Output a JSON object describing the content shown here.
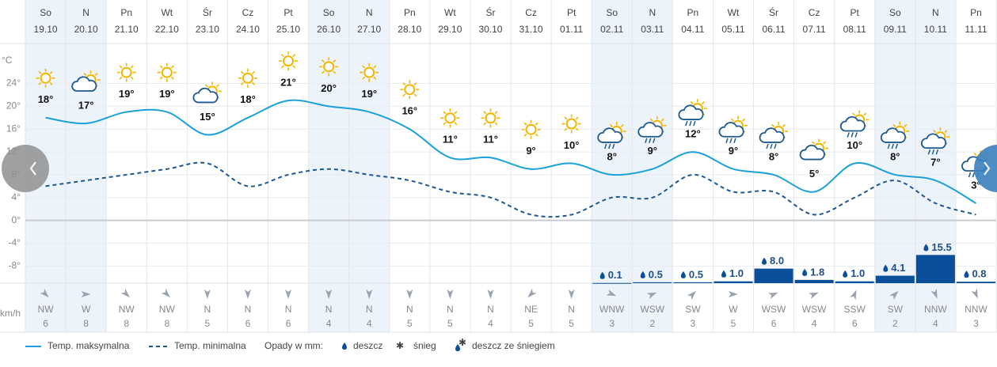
{
  "chart_data": {
    "type": "line",
    "weekdays": [
      "So",
      "N",
      "Pn",
      "Wt",
      "Śr",
      "Cz",
      "Pt",
      "So",
      "N",
      "Pn",
      "Wt",
      "Śr",
      "Cz",
      "Pt",
      "So",
      "N",
      "Pn",
      "Wt",
      "Śr",
      "Cz",
      "Pt",
      "So",
      "N",
      "Pn"
    ],
    "categories": [
      "19.10",
      "20.10",
      "21.10",
      "22.10",
      "23.10",
      "24.10",
      "25.10",
      "26.10",
      "27.10",
      "28.10",
      "29.10",
      "30.10",
      "31.10",
      "01.11",
      "02.11",
      "03.11",
      "04.11",
      "05.11",
      "06.11",
      "07.11",
      "08.11",
      "09.11",
      "10.11",
      "11.11"
    ],
    "y_unit": "°C",
    "ylim": [
      -11,
      31
    ],
    "yticks": [
      {
        "value": 24,
        "label": "24°"
      },
      {
        "value": 20,
        "label": "20°"
      },
      {
        "value": 16,
        "label": "16°"
      },
      {
        "value": 12,
        "label": "12°"
      },
      {
        "value": 8,
        "label": "8°"
      },
      {
        "value": 4,
        "label": "4°"
      },
      {
        "value": 0,
        "label": "0°"
      },
      {
        "value": -4,
        "label": "-4°"
      },
      {
        "value": -8,
        "label": "-8°"
      }
    ],
    "grid": true,
    "series": [
      {
        "name": "Temp. maksymalna",
        "color": "#1ba1d9",
        "dashed": false,
        "values": [
          18,
          17,
          19,
          19,
          15,
          18,
          21,
          20,
          19,
          16,
          11,
          11,
          9,
          10,
          8,
          9,
          12,
          9,
          8,
          5,
          10,
          8,
          7,
          3
        ],
        "value_labels": [
          "18°",
          "17°",
          "19°",
          "19°",
          "15°",
          "18°",
          "21°",
          "20°",
          "19°",
          "16°",
          "11°",
          "11°",
          "9°",
          "10°",
          "8°",
          "9°",
          "12°",
          "9°",
          "8°",
          "5°",
          "10°",
          "8°",
          "7°",
          "3°"
        ]
      },
      {
        "name": "Temp. minimalna",
        "color": "#1d5791",
        "dashed": true,
        "values": [
          6,
          7,
          8,
          9,
          10,
          6,
          8,
          9,
          8,
          7,
          5,
          4,
          1,
          1,
          4,
          4,
          8,
          5,
          5,
          1,
          4,
          7,
          3,
          1
        ]
      }
    ],
    "precipitation": {
      "title": "Opady w mm:",
      "types": [
        "deszcz",
        "śnieg",
        "deszcz ze śniegiem"
      ],
      "color": "#0b4f9a",
      "values": [
        null,
        null,
        null,
        null,
        null,
        null,
        null,
        null,
        null,
        null,
        null,
        null,
        null,
        null,
        0.1,
        0.5,
        0.5,
        1.0,
        8.0,
        1.8,
        1.0,
        4.1,
        15.5,
        0.8
      ],
      "value_labels": [
        null,
        null,
        null,
        null,
        null,
        null,
        null,
        null,
        null,
        null,
        null,
        null,
        null,
        null,
        "0.1",
        "0.5",
        "0.5",
        "1.0",
        "8.0",
        "1.8",
        "1.0",
        "4.1",
        "15.5",
        "0.8"
      ]
    },
    "wind": {
      "unit": "km/h",
      "directions": [
        "NW",
        "W",
        "NW",
        "NW",
        "N",
        "N",
        "N",
        "N",
        "N",
        "N",
        "N",
        "N",
        "NE",
        "N",
        "WNW",
        "WSW",
        "SW",
        "W",
        "WSW",
        "WSW",
        "SSW",
        "SW",
        "NNW",
        "NNW"
      ],
      "speeds": [
        6,
        8,
        8,
        8,
        5,
        6,
        6,
        4,
        4,
        5,
        5,
        4,
        5,
        5,
        3,
        2,
        3,
        5,
        6,
        4,
        6,
        2,
        4,
        3
      ]
    }
  }
}
